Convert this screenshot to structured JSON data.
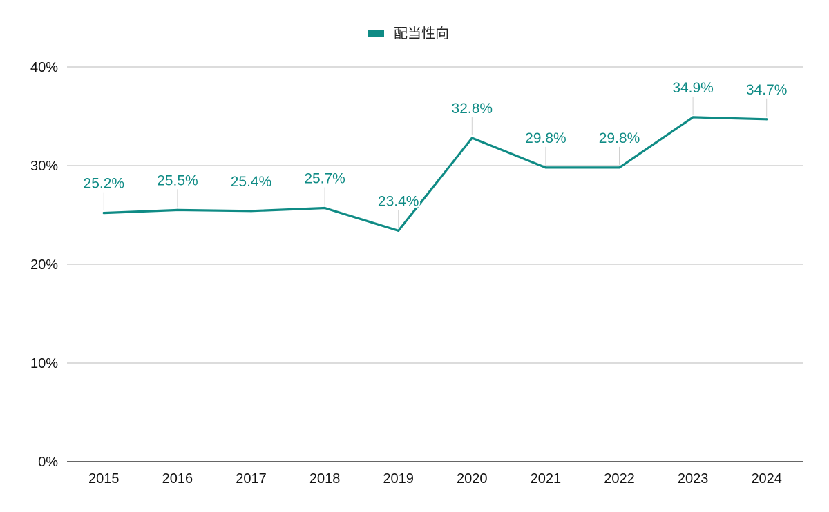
{
  "chart_data": {
    "type": "line",
    "title": "",
    "xlabel": "",
    "ylabel": "",
    "categories": [
      "2015",
      "2016",
      "2017",
      "2018",
      "2019",
      "2020",
      "2021",
      "2022",
      "2023",
      "2024"
    ],
    "series": [
      {
        "name": "配当性向",
        "values": [
          25.2,
          25.5,
          25.4,
          25.7,
          23.4,
          32.8,
          29.8,
          29.8,
          34.9,
          34.7
        ],
        "labels": [
          "25.2%",
          "25.5%",
          "25.4%",
          "25.7%",
          "23.4%",
          "32.8%",
          "29.8%",
          "29.8%",
          "34.9%",
          "34.7%"
        ],
        "color": "#0f8b85"
      }
    ],
    "ylim": [
      0,
      40
    ],
    "yticks": [
      0,
      10,
      20,
      30,
      40
    ],
    "ytick_labels": [
      "0%",
      "10%",
      "20%",
      "30%",
      "40%"
    ],
    "grid": true,
    "legend_position": "top-center",
    "colors": {
      "line": "#0f8b85",
      "grid": "#c8c8c8",
      "axis": "#333333",
      "leader": "#d0d0d0"
    }
  }
}
